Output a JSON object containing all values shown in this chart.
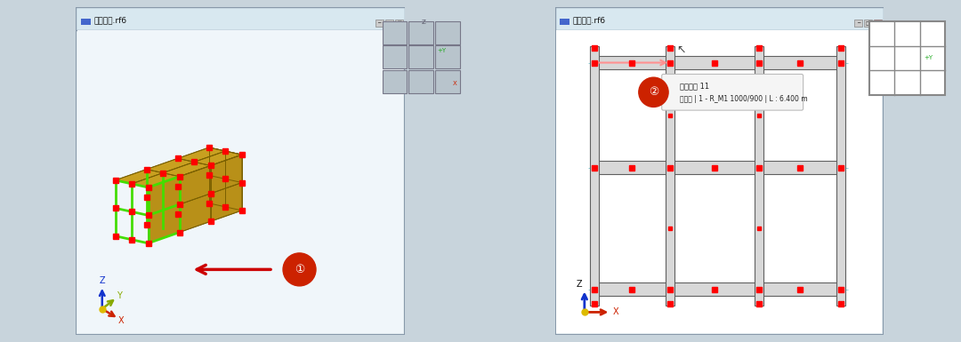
{
  "left_panel": {
    "title": "实体模型.rf6",
    "bg_color": "#eef4f8",
    "model_top_color": "#c8a020",
    "model_front_color": "#b89018",
    "model_right_color": "#d4aa28",
    "model_edge_color": "#7a6000",
    "node_color": "#ff0000",
    "highlight_color": "#44dd00",
    "gray_brace_color": "#9aabb8",
    "arrow_color": "#cc0000"
  },
  "right_panel": {
    "title": "实体模型.rf6",
    "bg_color": "#ffffff",
    "frame_color": "#aaaaaa",
    "frame_edge_color": "#606060",
    "dash_color": "#90d0d8",
    "node_color": "#ff0000",
    "tooltip_title": "杆件编号 11",
    "tooltip_body": "结果梁 | 1 - R_M1 1000/900 | L : 6.400 m",
    "arrow_color": "#ff8080"
  }
}
